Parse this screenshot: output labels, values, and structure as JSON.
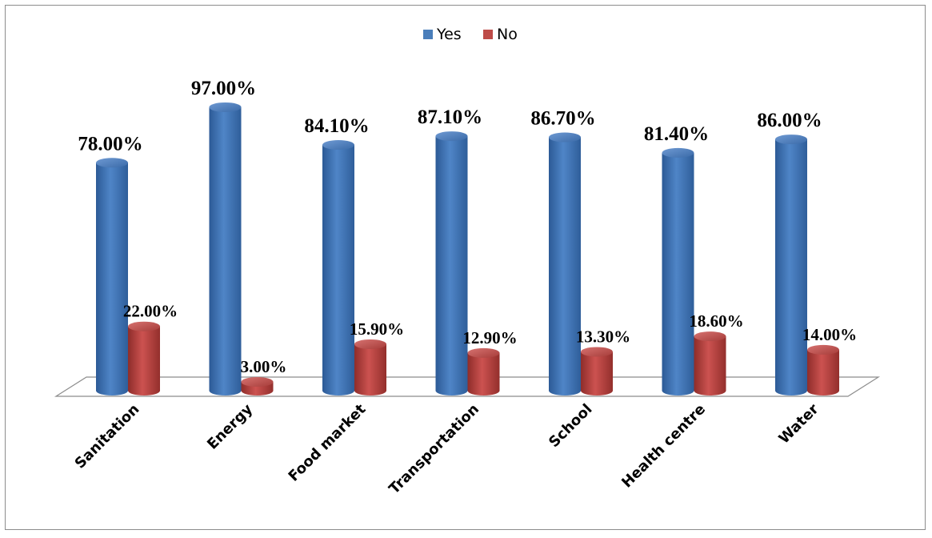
{
  "chart_data": {
    "type": "bar",
    "title": "",
    "xlabel": "",
    "ylabel": "",
    "ylim": [
      0,
      100
    ],
    "grid": false,
    "legend_position": "top-center",
    "categories": [
      "Sanitation",
      "Energy",
      "Food market",
      "Transportation",
      "School",
      "Health centre",
      "Water"
    ],
    "series": [
      {
        "name": "Yes",
        "color": "#4a7ebb",
        "values": [
          78.0,
          97.0,
          84.1,
          87.1,
          86.7,
          81.4,
          86.0
        ],
        "labels": [
          "78.00%",
          "97.00%",
          "84.10%",
          "87.10%",
          "86.70%",
          "81.40%",
          "86.00%"
        ]
      },
      {
        "name": "No",
        "color": "#be4b48",
        "values": [
          22.0,
          3.0,
          15.9,
          12.9,
          13.3,
          18.6,
          14.0
        ],
        "labels": [
          "22.00%",
          "3.00%",
          "15.90%",
          "12.90%",
          "13.30%",
          "18.60%",
          "14.00%"
        ]
      }
    ]
  }
}
